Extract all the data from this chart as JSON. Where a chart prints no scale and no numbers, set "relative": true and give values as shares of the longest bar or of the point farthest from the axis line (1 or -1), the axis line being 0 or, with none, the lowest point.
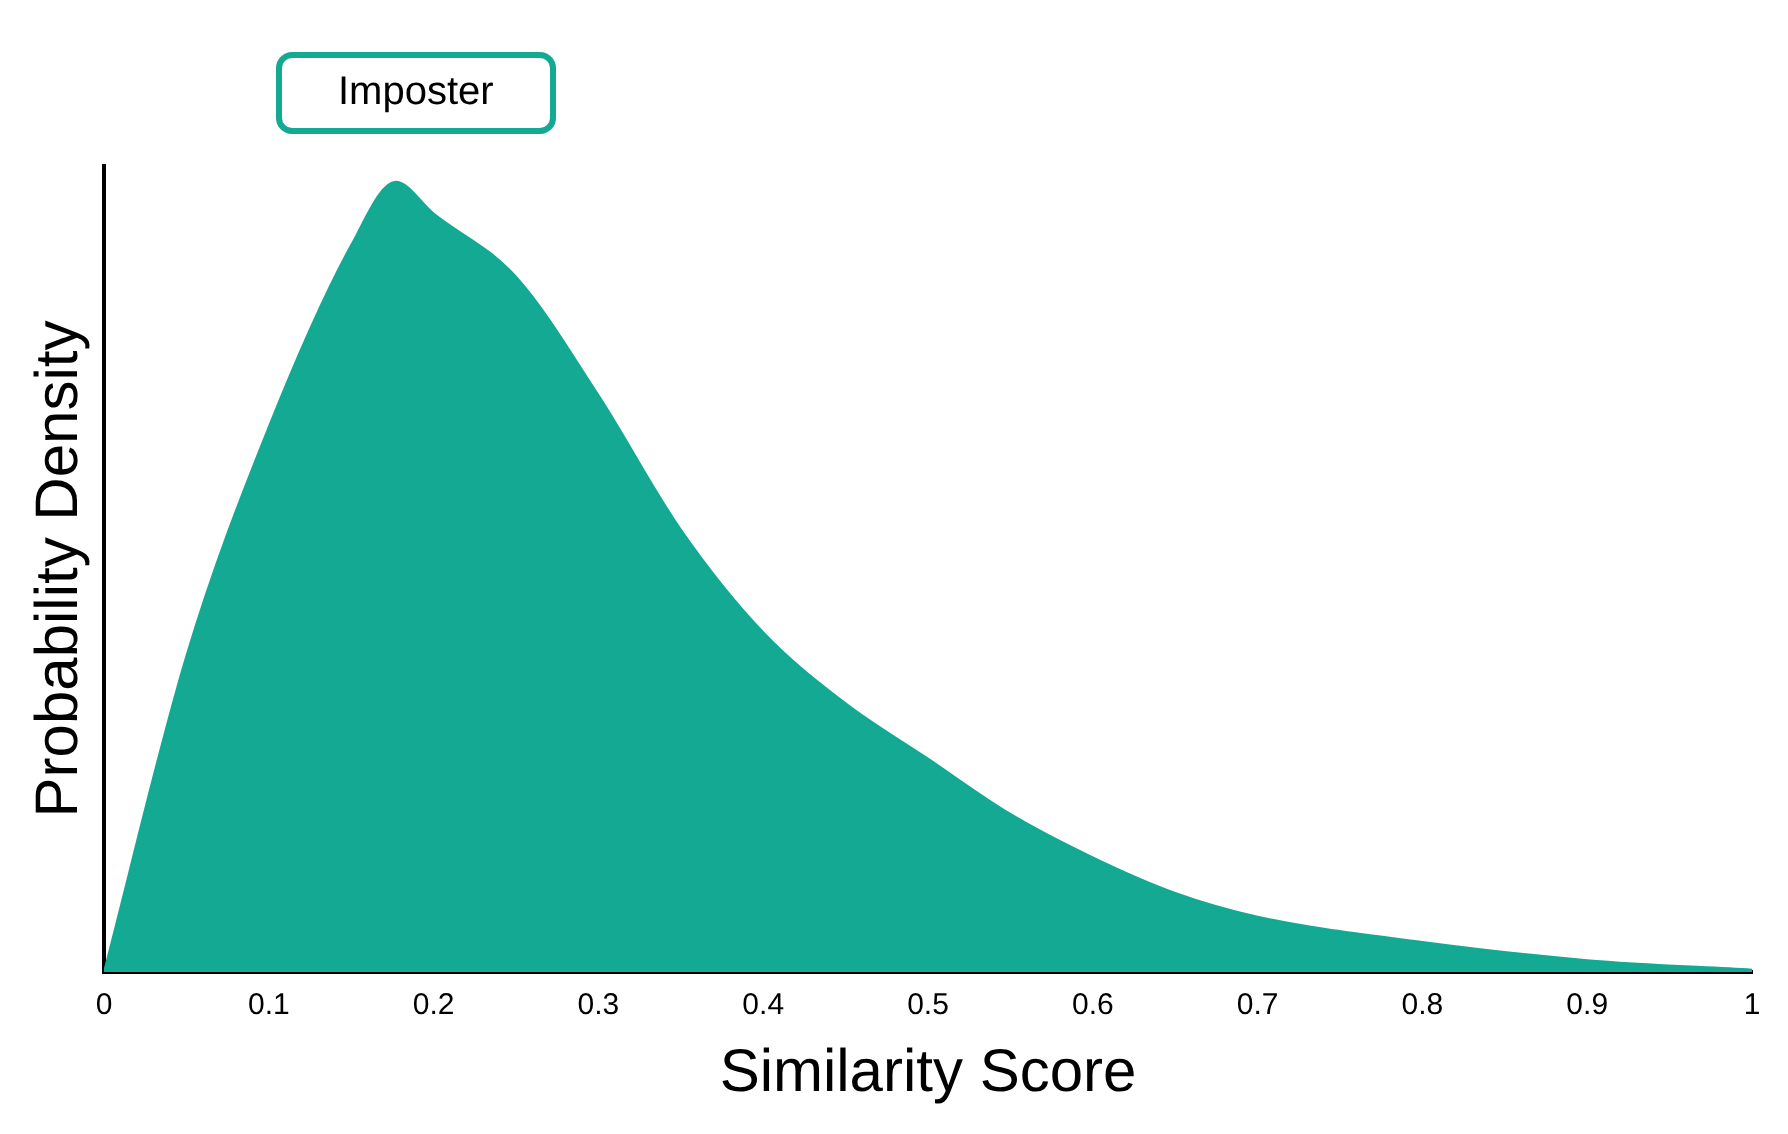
{
  "chart_data": {
    "type": "area",
    "xlabel": "Similarity Score",
    "ylabel": "Probability Density",
    "relative": true,
    "legend": "top left",
    "x": [
      0,
      0.05,
      0.1,
      0.15,
      0.177,
      0.2,
      0.25,
      0.3,
      0.35,
      0.4,
      0.45,
      0.5,
      0.55,
      0.6,
      0.65,
      0.7,
      0.8,
      0.9,
      1
    ],
    "series": [
      {
        "name": "Imposter",
        "color": "#13a993",
        "values": [
          0,
          0.4,
          0.69,
          0.92,
          1,
          0.96,
          0.88,
          0.73,
          0.56,
          0.43,
          0.34,
          0.27,
          0.2,
          0.145,
          0.1,
          0.07,
          0.038,
          0.015,
          0.003
        ]
      }
    ],
    "xlim": [
      0,
      1
    ],
    "xticks": [
      0,
      0.1,
      0.2,
      0.3,
      0.4,
      0.5,
      0.6,
      0.7,
      0.8,
      0.9,
      1
    ]
  }
}
